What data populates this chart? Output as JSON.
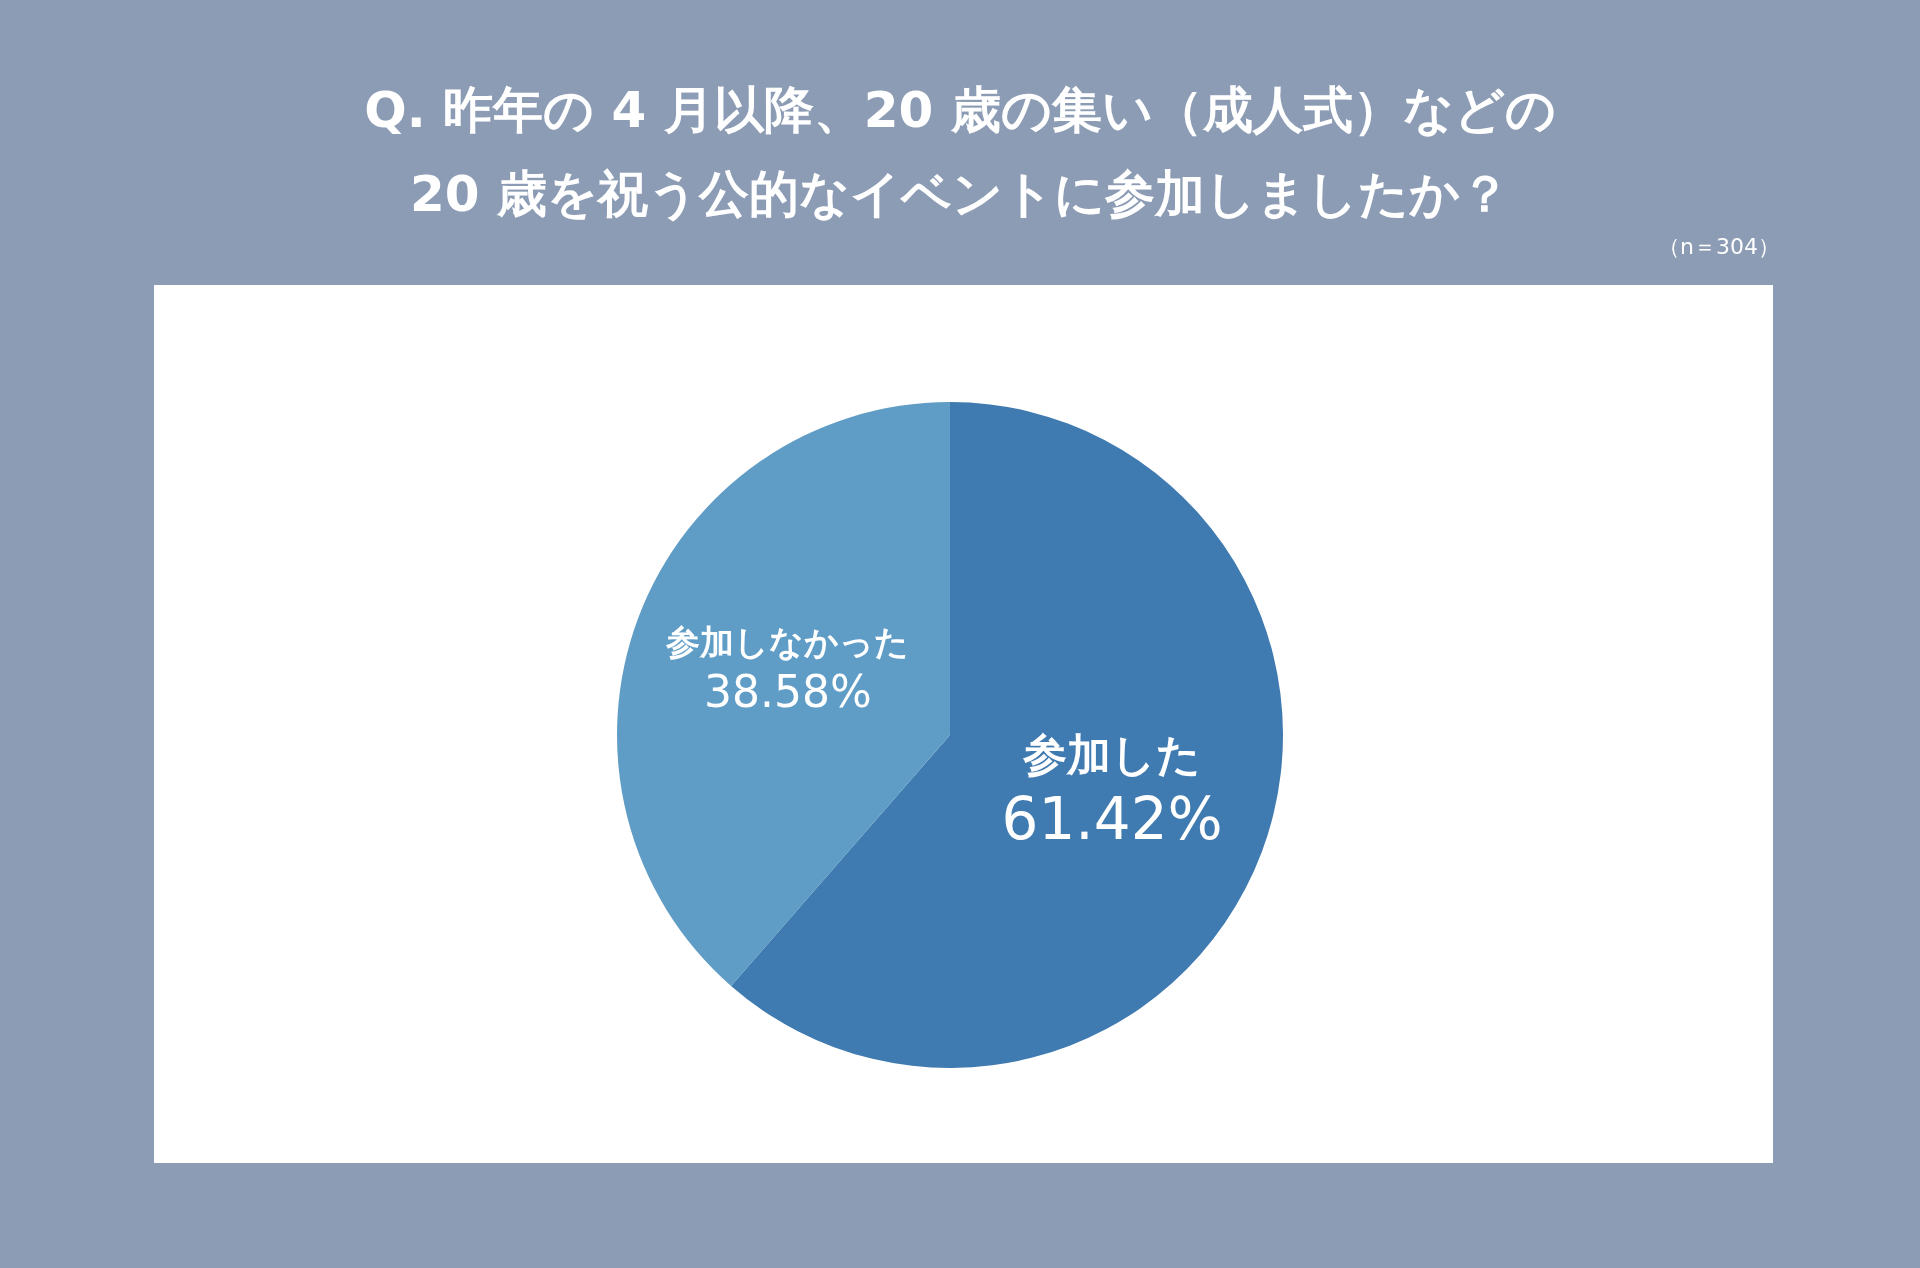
{
  "chart_data": {
    "type": "pie",
    "title": "Q. 昨年の 4 月以降、20 歳の集い（成人式）などの\n20 歳を祝う公的なイベントに参加しましたか？",
    "subtitle": "（n＝304）",
    "categories": [
      "参加した",
      "参加しなかった"
    ],
    "values": [
      61.42,
      38.58
    ],
    "colors": [
      "#3f7ab0",
      "#5f9dc6"
    ],
    "value_labels": [
      "61.42%",
      "38.58%"
    ],
    "legend": false
  }
}
